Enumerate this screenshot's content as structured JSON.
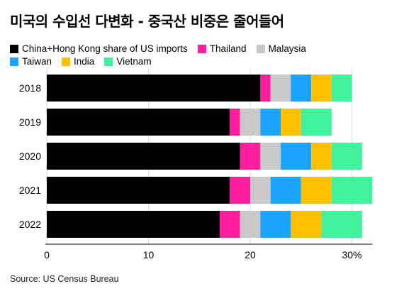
{
  "title": "미국의 수입선 다변화 - 중국산 비중은 줄어들어",
  "source": "Source: US Census Bureau",
  "chart_data": {
    "type": "bar",
    "orientation": "horizontal",
    "stacked": true,
    "categories": [
      "2018",
      "2019",
      "2020",
      "2021",
      "2022"
    ],
    "series": [
      {
        "name": "China+Hong Kong share of US imports",
        "color": "#000000",
        "values": [
          21,
          18,
          19,
          18,
          17
        ]
      },
      {
        "name": "Thailand",
        "color": "#ff1e9e",
        "values": [
          1,
          1,
          2,
          2,
          2
        ]
      },
      {
        "name": "Malaysia",
        "color": "#c9c9c9",
        "values": [
          2,
          2,
          2,
          2,
          2
        ]
      },
      {
        "name": "Taiwan",
        "color": "#1aa3ff",
        "values": [
          2,
          2,
          3,
          3,
          3
        ]
      },
      {
        "name": "India",
        "color": "#ffc000",
        "values": [
          2,
          2,
          2,
          3,
          3
        ]
      },
      {
        "name": "Vietnam",
        "color": "#3ff29b",
        "values": [
          2,
          3,
          3,
          4,
          4
        ]
      }
    ],
    "xlim": [
      0,
      32
    ],
    "xticks": [
      "0",
      "10",
      "20",
      "30%"
    ],
    "xtick_values": [
      0,
      10,
      20,
      30
    ],
    "grid": "vertical",
    "legend_position": "top"
  }
}
